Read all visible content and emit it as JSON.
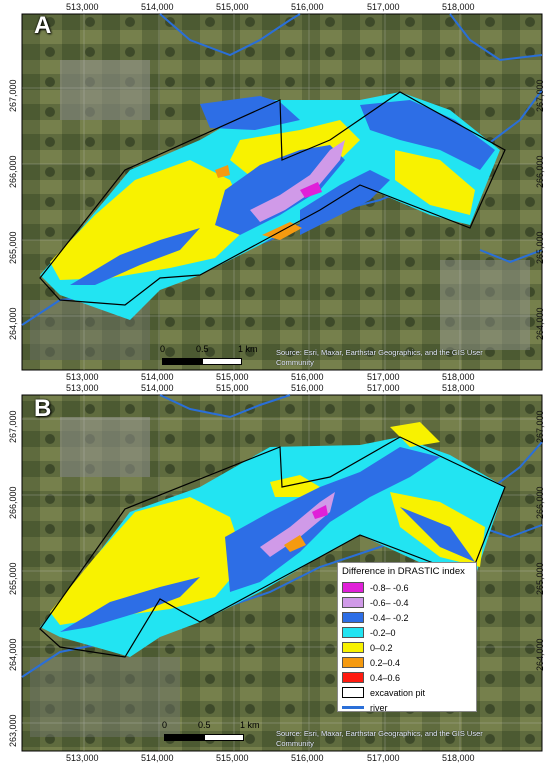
{
  "panels": [
    {
      "label": "A",
      "x_ticks": [
        "513,000",
        "514,000",
        "515,000",
        "516,000",
        "517,000",
        "518,000"
      ],
      "y_ticks": [
        "267,000",
        "266,000",
        "265,000",
        "264,000"
      ],
      "attribution": "Source: Esri, Maxar, Earthstar Geographics, and the GIS User Community",
      "scale": {
        "labels": [
          "0",
          "0.5",
          "1 km"
        ]
      }
    },
    {
      "label": "B",
      "x_ticks": [
        "513,000",
        "514,000",
        "515,000",
        "516,000",
        "517,000",
        "518,000"
      ],
      "y_ticks": [
        "267,000",
        "266,000",
        "265,000",
        "264,000",
        "263,000"
      ],
      "attribution": "Source: Esri, Maxar, Earthstar Geographics, and the GIS User Community",
      "scale": {
        "labels": [
          "0",
          "0.5",
          "1 km"
        ]
      }
    }
  ],
  "legend": {
    "title": "Difference in DRASTIC index",
    "classes": [
      {
        "label": "-0.8– -0.6",
        "color": "#e020d8"
      },
      {
        "label": "-0.6– -0.4",
        "color": "#d09ae8"
      },
      {
        "label": "-0.4– -0.2",
        "color": "#2d6ee6"
      },
      {
        "label": "-0.2–0",
        "color": "#22e4f2"
      },
      {
        "label": "0–0.2",
        "color": "#f8f200"
      },
      {
        "label": "0.2–0.4",
        "color": "#f59a10"
      },
      {
        "label": "0.4–0.6",
        "color": "#ff1a10"
      }
    ],
    "pit_label": "excavation pit",
    "river_label": "river",
    "river_color": "#2a6fd8"
  }
}
